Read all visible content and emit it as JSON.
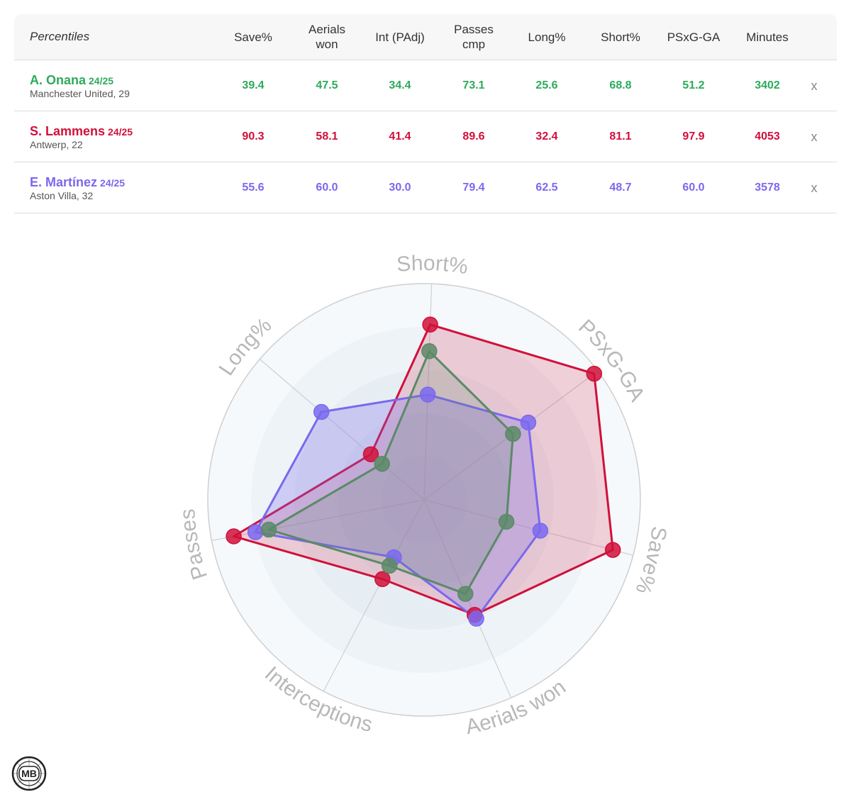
{
  "table": {
    "title": "Percentiles",
    "columns": [
      {
        "key": "save",
        "label": [
          "Save%"
        ]
      },
      {
        "key": "aerials",
        "label": [
          "Aerials",
          "won"
        ]
      },
      {
        "key": "int",
        "label": [
          "Int (PAdj)"
        ]
      },
      {
        "key": "passes",
        "label": [
          "Passes",
          "cmp"
        ]
      },
      {
        "key": "long",
        "label": [
          "Long%"
        ]
      },
      {
        "key": "short",
        "label": [
          "Short%"
        ]
      },
      {
        "key": "psxg",
        "label": [
          "PSxG-GA"
        ]
      },
      {
        "key": "minutes",
        "label": [
          "Minutes"
        ]
      }
    ],
    "remove_label": "x",
    "players": [
      {
        "name": "A. Onana",
        "season": "24/25",
        "club": "Manchester United, 29",
        "color": "#2eaa5c",
        "values": [
          "39.4",
          "47.5",
          "34.4",
          "73.1",
          "25.6",
          "68.8",
          "51.2",
          "3402"
        ]
      },
      {
        "name": "S. Lammens",
        "season": "24/25",
        "club": "Antwerp, 22",
        "color": "#d0103a",
        "values": [
          "90.3",
          "58.1",
          "41.4",
          "89.6",
          "32.4",
          "81.1",
          "97.9",
          "4053"
        ]
      },
      {
        "name": "E. Martínez",
        "season": "24/25",
        "club": "Aston Villa, 32",
        "color": "#7b68ee",
        "values": [
          "55.6",
          "60.0",
          "30.0",
          "79.4",
          "62.5",
          "48.7",
          "60.0",
          "3578"
        ]
      }
    ]
  },
  "chart_data": {
    "type": "radar",
    "axes": [
      "Short%",
      "PSxG-GA",
      "Save%",
      "Aerials won",
      "Interceptions",
      "Passes",
      "Long%"
    ],
    "range": [
      0,
      100
    ],
    "series": [
      {
        "name": "S. Lammens",
        "values": [
          81.1,
          97.9,
          90.3,
          58.1,
          41.4,
          89.6,
          32.4
        ],
        "color": "#d0103a",
        "fill": "rgba(214,40,80,0.20)"
      },
      {
        "name": "E. Martínez",
        "values": [
          48.7,
          60.0,
          55.6,
          60.0,
          30.0,
          79.4,
          62.5
        ],
        "color": "#7b68ee",
        "fill": "rgba(123,104,238,0.28)"
      },
      {
        "name": "A. Onana",
        "values": [
          68.8,
          51.2,
          39.4,
          47.5,
          34.4,
          73.1,
          25.6
        ],
        "color": "#5a8a66",
        "fill": "rgba(90,140,102,0.18)"
      }
    ]
  },
  "logo": {
    "text": "MB"
  }
}
